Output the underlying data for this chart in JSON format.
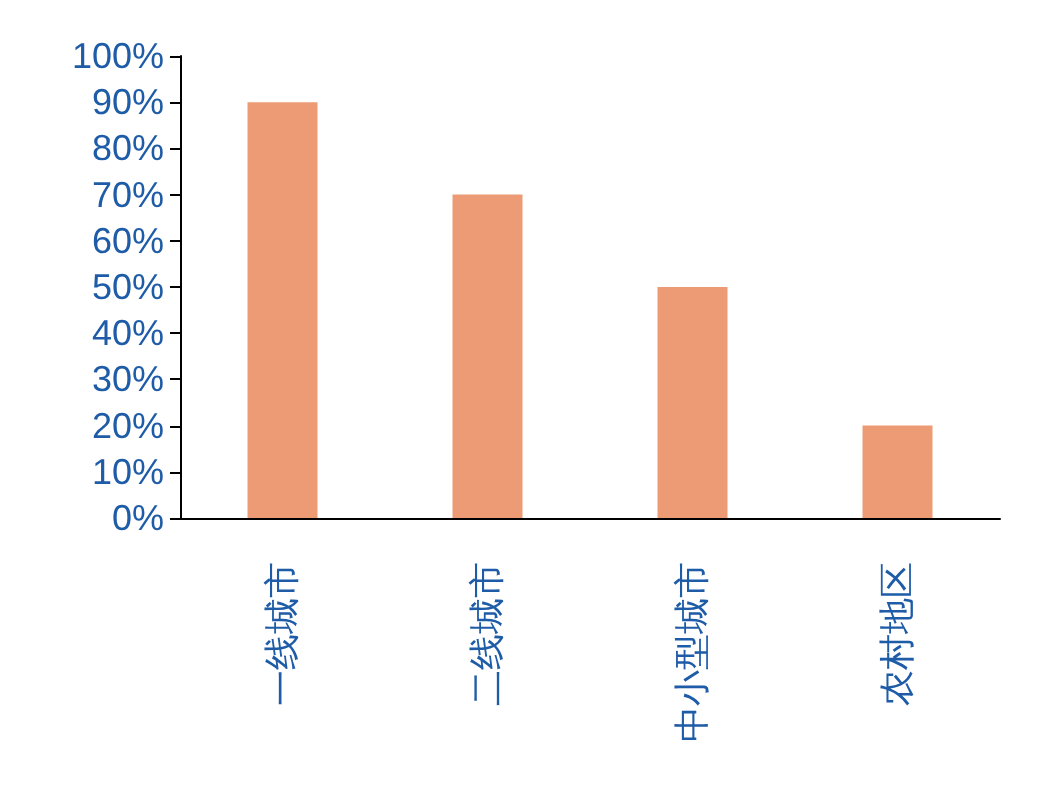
{
  "chart_data": {
    "type": "bar",
    "categories": [
      "一线城市",
      "二线城市",
      "中小型城市",
      "农村地区"
    ],
    "values": [
      90,
      70,
      50,
      20
    ],
    "color": "#ec9b74",
    "ylim": [
      0,
      100
    ],
    "yticks": [
      {
        "value": 0,
        "label": "0%"
      },
      {
        "value": 10,
        "label": "10%"
      },
      {
        "value": 20,
        "label": "20%"
      },
      {
        "value": 30,
        "label": "30%"
      },
      {
        "value": 40,
        "label": "40%"
      },
      {
        "value": 50,
        "label": "50%"
      },
      {
        "value": 60,
        "label": "60%"
      },
      {
        "value": 70,
        "label": "70%"
      },
      {
        "value": 80,
        "label": "80%"
      },
      {
        "value": 90,
        "label": "90%"
      },
      {
        "value": 100,
        "label": "100%"
      }
    ],
    "grid": false
  }
}
